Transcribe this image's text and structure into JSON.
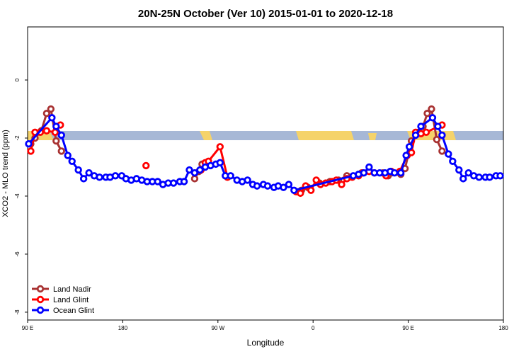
{
  "chart_data": {
    "type": "line",
    "title": "20N-25N October (Ver 10)   2015-01-01 to 2020-12-18",
    "x_label": "Longitude",
    "y_label": "XCO2 - MLO trend (ppm)",
    "xlim": [
      90,
      540
    ],
    "ylim": [
      -8.27,
      1.83
    ],
    "xticks": [
      {
        "value": 90,
        "label": "90 E"
      },
      180,
      {
        "value": 270,
        "label": "90 W"
      },
      {
        "value": 360,
        "label": "0"
      },
      {
        "value": 450,
        "label": "90 E"
      },
      {
        "value": 540,
        "label": "180"
      }
    ],
    "yticks": [
      -8,
      -6,
      -4,
      -2,
      0
    ],
    "legend": "bottom-left",
    "series": [
      {
        "name": "Land Nadir",
        "color": "#a83232",
        "x": [
          93,
          97,
          103,
          108,
          112,
          117,
          122,
          200,
          248,
          252,
          255,
          300,
          349,
          355,
          366,
          376,
          384,
          392,
          406,
          426,
          431,
          443,
          447,
          453,
          460,
          464,
          468,
          472,
          477,
          482
        ],
        "values": [
          -2.2,
          -2.0,
          -1.75,
          -1.15,
          -1.0,
          -2.1,
          -2.45,
          null,
          -3.4,
          -3.15,
          -2.9,
          null,
          -3.8,
          -3.7,
          -3.55,
          -3.5,
          -3.45,
          -3.3,
          -3.2,
          -3.2,
          -3.3,
          -3.25,
          -3.05,
          -2.1,
          -1.8,
          -1.6,
          -1.15,
          -1.0,
          -2.05,
          -2.45
        ]
      },
      {
        "name": "Land Glint",
        "color": "#ff0000",
        "x": [
          93,
          97,
          102,
          108,
          116,
          121,
          150,
          202,
          230,
          254,
          258,
          261,
          272,
          279,
          300,
          344,
          348,
          353,
          358,
          363,
          367,
          372,
          378,
          382,
          387,
          392,
          397,
          403,
          407,
          413,
          418,
          429,
          434,
          442,
          449,
          453,
          457,
          462,
          467,
          482
        ],
        "values": [
          -2.45,
          -1.8,
          -1.8,
          -1.75,
          -1.8,
          -1.55,
          null,
          -2.95,
          null,
          -3.1,
          -2.85,
          -2.8,
          -2.3,
          -3.35,
          null,
          -3.85,
          -3.9,
          -3.65,
          -3.8,
          -3.45,
          -3.6,
          -3.55,
          -3.5,
          -3.45,
          -3.6,
          -3.4,
          -3.35,
          -3.3,
          -3.2,
          -3.15,
          -3.2,
          -3.3,
          -3.15,
          -3.15,
          -2.6,
          -2.5,
          -1.8,
          -1.85,
          -1.8,
          -1.55
        ]
      },
      {
        "name": "Ocean Glint",
        "color": "#0000ff",
        "x": [
          91,
          113,
          117,
          122,
          128,
          132,
          138,
          143,
          148,
          153,
          158,
          164,
          168,
          173,
          179,
          183,
          188,
          193,
          198,
          203,
          208,
          213,
          218,
          223,
          228,
          234,
          238,
          243,
          248,
          253,
          258,
          263,
          268,
          272,
          277,
          282,
          288,
          293,
          298,
          303,
          307,
          313,
          317,
          323,
          327,
          332,
          337,
          342,
          398,
          403,
          408,
          413,
          418,
          423,
          428,
          433,
          437,
          443,
          448,
          451,
          457,
          462,
          473,
          478,
          482,
          488,
          492,
          498,
          502,
          507,
          512,
          517,
          523,
          527,
          533,
          537
        ],
        "values": [
          -2.2,
          -1.3,
          -1.6,
          -1.9,
          -2.6,
          -2.8,
          -3.1,
          -3.4,
          -3.2,
          -3.3,
          -3.35,
          -3.35,
          -3.35,
          -3.3,
          -3.3,
          -3.4,
          -3.45,
          -3.4,
          -3.45,
          -3.5,
          -3.5,
          -3.5,
          -3.6,
          -3.55,
          -3.55,
          -3.5,
          -3.5,
          -3.1,
          -3.2,
          -3.1,
          -3.0,
          -2.95,
          -2.9,
          -2.85,
          -3.3,
          -3.3,
          -3.45,
          -3.5,
          -3.45,
          -3.6,
          -3.65,
          -3.6,
          -3.65,
          -3.7,
          -3.65,
          -3.7,
          -3.6,
          -3.8,
          -3.3,
          -3.25,
          -3.2,
          -3.0,
          -3.2,
          -3.2,
          -3.2,
          -3.15,
          -3.2,
          -3.2,
          -2.6,
          -2.3,
          -1.9,
          -1.6,
          -1.3,
          -1.6,
          -1.9,
          -2.55,
          -2.8,
          -3.1,
          -3.4,
          -3.2,
          -3.3,
          -3.35,
          -3.35,
          -3.35,
          -3.3,
          -3.3
        ]
      }
    ]
  }
}
